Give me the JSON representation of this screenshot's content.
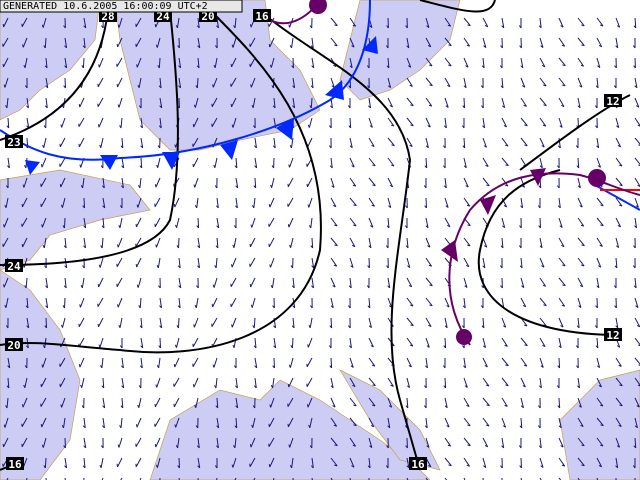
{
  "header": {
    "generated": "GENERATED 10.6.2005 16:00:09 UTC+2"
  },
  "contour_labels": [
    "28",
    "24",
    "20",
    "16",
    "12",
    "12",
    "23",
    "24",
    "20",
    "16",
    "16"
  ]
}
